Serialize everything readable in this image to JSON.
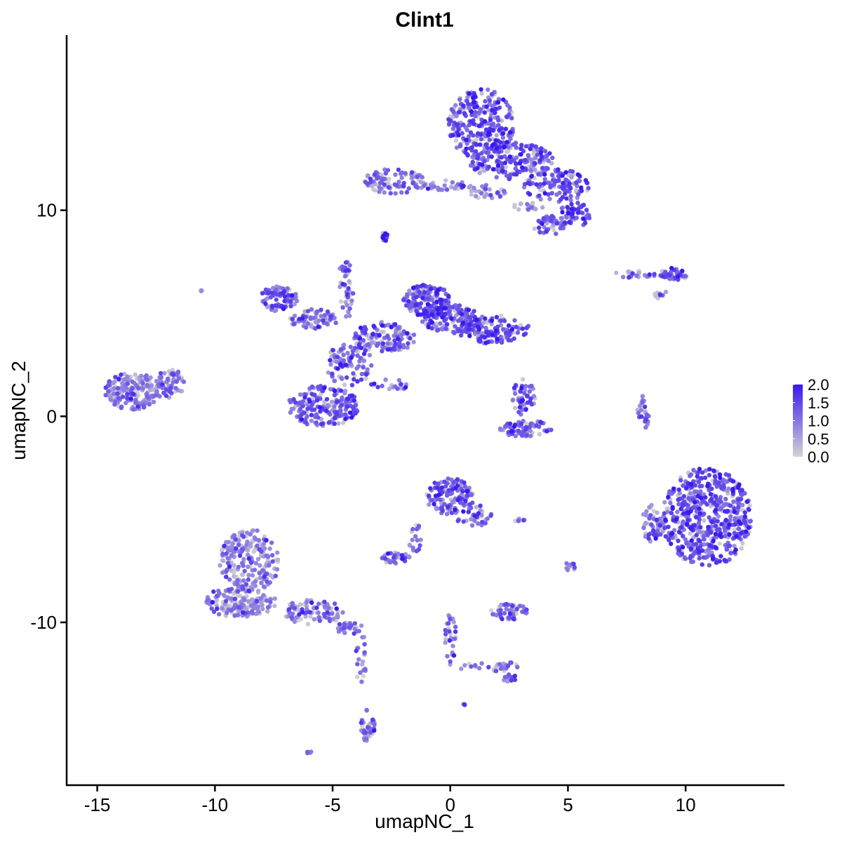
{
  "chart_data": {
    "type": "scatter",
    "title": "Clint1",
    "xlabel": "umapNC_1",
    "ylabel": "umapNC_2",
    "xlim": [
      -16.3,
      14.2
    ],
    "ylim": [
      -17.9,
      18.5
    ],
    "x_ticks": [
      -15,
      -10,
      -5,
      0,
      5,
      10
    ],
    "x_tick_labels": [
      "-15",
      "-10",
      "-5",
      "0",
      "5",
      "10"
    ],
    "y_ticks": [
      10,
      0,
      -10
    ],
    "y_tick_labels": [
      "10",
      "0",
      "-10"
    ],
    "grid": false,
    "color_scale": {
      "name": "expression",
      "low_color": "#d3d3d3",
      "high_color": "#3a18f0",
      "range": [
        0,
        2.0
      ],
      "ticks": [
        0.0,
        0.5,
        1.0,
        1.5,
        2.0
      ],
      "tick_labels": [
        "0.0",
        "0.5",
        "1.0",
        "1.5",
        "2.0"
      ],
      "legend_position": "right"
    },
    "clusters": [
      {
        "cx": 1.3,
        "cy": 14.2,
        "rx": 1.4,
        "ry": 1.7,
        "n": 260,
        "expr": 1.25
      },
      {
        "cx": 2.6,
        "cy": 12.4,
        "rx": 1.8,
        "ry": 0.9,
        "n": 180,
        "expr": 1.2
      },
      {
        "cx": 4.5,
        "cy": 11.2,
        "rx": 1.4,
        "ry": 0.8,
        "n": 120,
        "expr": 1.3
      },
      {
        "cx": 5.3,
        "cy": 9.8,
        "rx": 0.7,
        "ry": 0.6,
        "n": 60,
        "expr": 1.35
      },
      {
        "cx": 4.2,
        "cy": 9.3,
        "rx": 0.7,
        "ry": 0.5,
        "n": 45,
        "expr": 1.2
      },
      {
        "cx": -2.4,
        "cy": 11.4,
        "rx": 1.3,
        "ry": 0.6,
        "n": 90,
        "expr": 1.1
      },
      {
        "cx": -0.3,
        "cy": 11.2,
        "rx": 1.2,
        "ry": 0.25,
        "n": 35,
        "expr": 0.9
      },
      {
        "cx": 1.6,
        "cy": 10.9,
        "rx": 0.8,
        "ry": 0.35,
        "n": 30,
        "expr": 0.8
      },
      {
        "cx": 3.2,
        "cy": 10.2,
        "rx": 0.8,
        "ry": 0.2,
        "n": 15,
        "expr": 0.6
      },
      {
        "cx": -2.8,
        "cy": 8.7,
        "rx": 0.15,
        "ry": 0.2,
        "n": 14,
        "expr": 1.6
      },
      {
        "cx": 9.5,
        "cy": 6.9,
        "rx": 0.6,
        "ry": 0.3,
        "n": 40,
        "expr": 1.2
      },
      {
        "cx": 7.9,
        "cy": 6.9,
        "rx": 0.9,
        "ry": 0.2,
        "n": 22,
        "expr": 1.0
      },
      {
        "cx": 8.9,
        "cy": 6.0,
        "rx": 0.3,
        "ry": 0.3,
        "n": 8,
        "expr": 0.9
      },
      {
        "cx": -7.3,
        "cy": 5.7,
        "rx": 0.8,
        "ry": 0.6,
        "n": 90,
        "expr": 1.0
      },
      {
        "cx": -5.8,
        "cy": 4.7,
        "rx": 1.0,
        "ry": 0.5,
        "n": 70,
        "expr": 1.0
      },
      {
        "cx": -4.4,
        "cy": 6.0,
        "rx": 0.3,
        "ry": 1.4,
        "n": 35,
        "expr": 1.0
      },
      {
        "cx": -4.5,
        "cy": 7.3,
        "rx": 0.25,
        "ry": 0.3,
        "n": 12,
        "expr": 1.2
      },
      {
        "cx": -1.0,
        "cy": 5.6,
        "rx": 1.0,
        "ry": 0.8,
        "n": 150,
        "expr": 1.25
      },
      {
        "cx": 0.1,
        "cy": 4.7,
        "rx": 1.3,
        "ry": 0.7,
        "n": 150,
        "expr": 1.2
      },
      {
        "cx": 1.9,
        "cy": 4.2,
        "rx": 1.6,
        "ry": 0.7,
        "n": 130,
        "expr": 1.3
      },
      {
        "cx": -2.8,
        "cy": 3.8,
        "rx": 1.3,
        "ry": 0.8,
        "n": 120,
        "expr": 1.1
      },
      {
        "cx": -4.3,
        "cy": 2.5,
        "rx": 1.0,
        "ry": 1.0,
        "n": 90,
        "expr": 1.1
      },
      {
        "cx": -2.6,
        "cy": 1.5,
        "rx": 0.8,
        "ry": 0.3,
        "n": 20,
        "expr": 0.9
      },
      {
        "cx": -5.4,
        "cy": 0.5,
        "rx": 1.5,
        "ry": 1.0,
        "n": 200,
        "expr": 1.15
      },
      {
        "cx": -13.5,
        "cy": 1.2,
        "rx": 1.2,
        "ry": 0.9,
        "n": 190,
        "expr": 0.75
      },
      {
        "cx": -11.9,
        "cy": 1.6,
        "rx": 0.6,
        "ry": 0.7,
        "n": 60,
        "expr": 0.85
      },
      {
        "cx": -10.6,
        "cy": 6.1,
        "rx": 0.05,
        "ry": 0.05,
        "n": 3,
        "expr": 0.7
      },
      {
        "cx": 3.1,
        "cy": 0.9,
        "rx": 0.5,
        "ry": 0.9,
        "n": 50,
        "expr": 1.1
      },
      {
        "cx": 3.2,
        "cy": -0.6,
        "rx": 1.1,
        "ry": 0.4,
        "n": 70,
        "expr": 1.2
      },
      {
        "cx": 8.2,
        "cy": 0.1,
        "rx": 0.25,
        "ry": 0.9,
        "n": 28,
        "expr": 1.0
      },
      {
        "cx": 10.9,
        "cy": -4.9,
        "rx": 1.9,
        "ry": 2.4,
        "n": 560,
        "expr": 1.35
      },
      {
        "cx": 8.6,
        "cy": -5.2,
        "rx": 0.5,
        "ry": 0.9,
        "n": 50,
        "expr": 0.9
      },
      {
        "cx": 0.0,
        "cy": -3.9,
        "rx": 1.0,
        "ry": 0.9,
        "n": 120,
        "expr": 1.15
      },
      {
        "cx": 1.0,
        "cy": -4.8,
        "rx": 0.8,
        "ry": 0.6,
        "n": 40,
        "expr": 1.2
      },
      {
        "cx": -1.5,
        "cy": -5.9,
        "rx": 0.3,
        "ry": 0.8,
        "n": 18,
        "expr": 0.9
      },
      {
        "cx": -2.3,
        "cy": -6.9,
        "rx": 0.6,
        "ry": 0.3,
        "n": 35,
        "expr": 0.95
      },
      {
        "cx": 2.5,
        "cy": -9.5,
        "rx": 0.8,
        "ry": 0.4,
        "n": 55,
        "expr": 0.95
      },
      {
        "cx": 5.1,
        "cy": -7.3,
        "rx": 0.3,
        "ry": 0.2,
        "n": 12,
        "expr": 0.85
      },
      {
        "cx": 2.9,
        "cy": -5.0,
        "rx": 0.3,
        "ry": 0.1,
        "n": 8,
        "expr": 0.7
      },
      {
        "cx": -8.5,
        "cy": -7.0,
        "rx": 1.3,
        "ry": 1.5,
        "n": 220,
        "expr": 0.75
      },
      {
        "cx": -8.9,
        "cy": -9.0,
        "rx": 1.5,
        "ry": 0.8,
        "n": 170,
        "expr": 0.7
      },
      {
        "cx": -5.8,
        "cy": -9.5,
        "rx": 1.3,
        "ry": 0.6,
        "n": 90,
        "expr": 0.85
      },
      {
        "cx": -4.3,
        "cy": -10.3,
        "rx": 0.6,
        "ry": 0.3,
        "n": 30,
        "expr": 1.0
      },
      {
        "cx": -3.8,
        "cy": -11.7,
        "rx": 0.25,
        "ry": 1.2,
        "n": 20,
        "expr": 0.6
      },
      {
        "cx": -3.5,
        "cy": -15.0,
        "rx": 0.3,
        "ry": 0.8,
        "n": 40,
        "expr": 0.9
      },
      {
        "cx": 0.0,
        "cy": -10.8,
        "rx": 0.25,
        "ry": 1.3,
        "n": 30,
        "expr": 1.0
      },
      {
        "cx": 1.5,
        "cy": -12.1,
        "rx": 1.4,
        "ry": 0.3,
        "n": 28,
        "expr": 0.9
      },
      {
        "cx": 2.5,
        "cy": -12.7,
        "rx": 0.3,
        "ry": 0.2,
        "n": 12,
        "expr": 1.1
      },
      {
        "cx": 0.6,
        "cy": -14.0,
        "rx": 0.05,
        "ry": 0.05,
        "n": 3,
        "expr": 1.3
      },
      {
        "cx": -6.0,
        "cy": -16.3,
        "rx": 0.1,
        "ry": 0.08,
        "n": 4,
        "expr": 1.0
      },
      {
        "cx": -8.0,
        "cy": 9.0,
        "rx": 0.01,
        "ry": 0.01,
        "n": 0,
        "expr": 0.0
      }
    ]
  }
}
